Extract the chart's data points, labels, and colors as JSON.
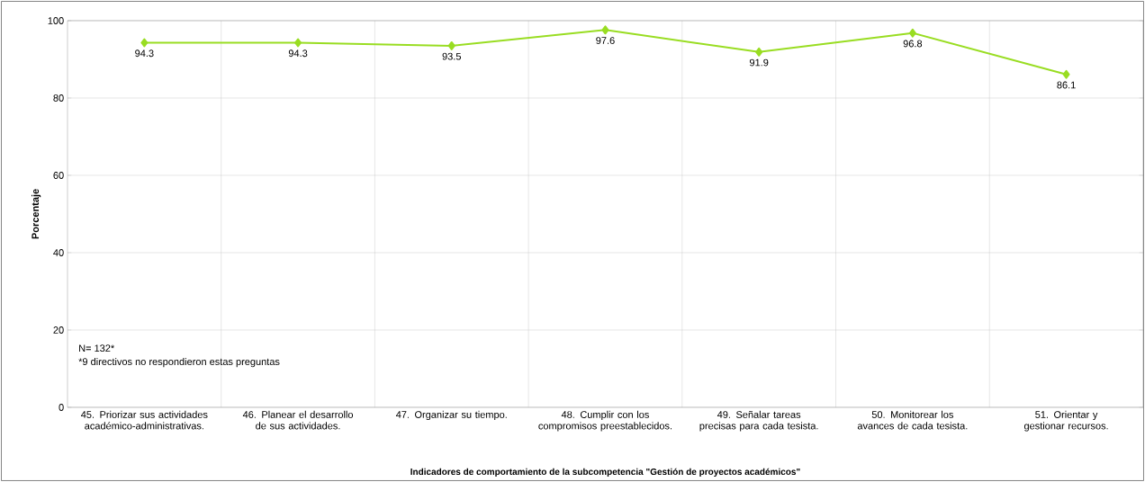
{
  "chart_data": {
    "type": "line",
    "xlabel": "Indicadores de comportamiento de la subcompetencia \"Gestión de proyectos académicos\"",
    "ylabel": "Porcentaje",
    "categories": [
      "45. Priorizar sus actividades académico-administrativas.",
      "46. Planear el desarrollo de sus actividades.",
      "47. Organizar su tiempo.",
      "48. Cumplir con  los compromisos preestablecidos.",
      "49. Señalar  tareas precisas para cada tesista.",
      "50. Monitorear los avances de cada tesista.",
      "51. Orientar y gestionar recursos."
    ],
    "values": [
      94.3,
      94.3,
      93.5,
      97.6,
      91.9,
      96.8,
      86.1
    ],
    "color": "#99dd22",
    "marker": "diamond",
    "line_style": "solid",
    "data_labels": true,
    "grid": true,
    "ylim": [
      0,
      100
    ],
    "yticks": [
      0,
      20,
      40,
      60,
      80,
      100
    ],
    "annotations": [
      "N= 132*",
      "*9 directivos no respondieron estas preguntas"
    ]
  }
}
